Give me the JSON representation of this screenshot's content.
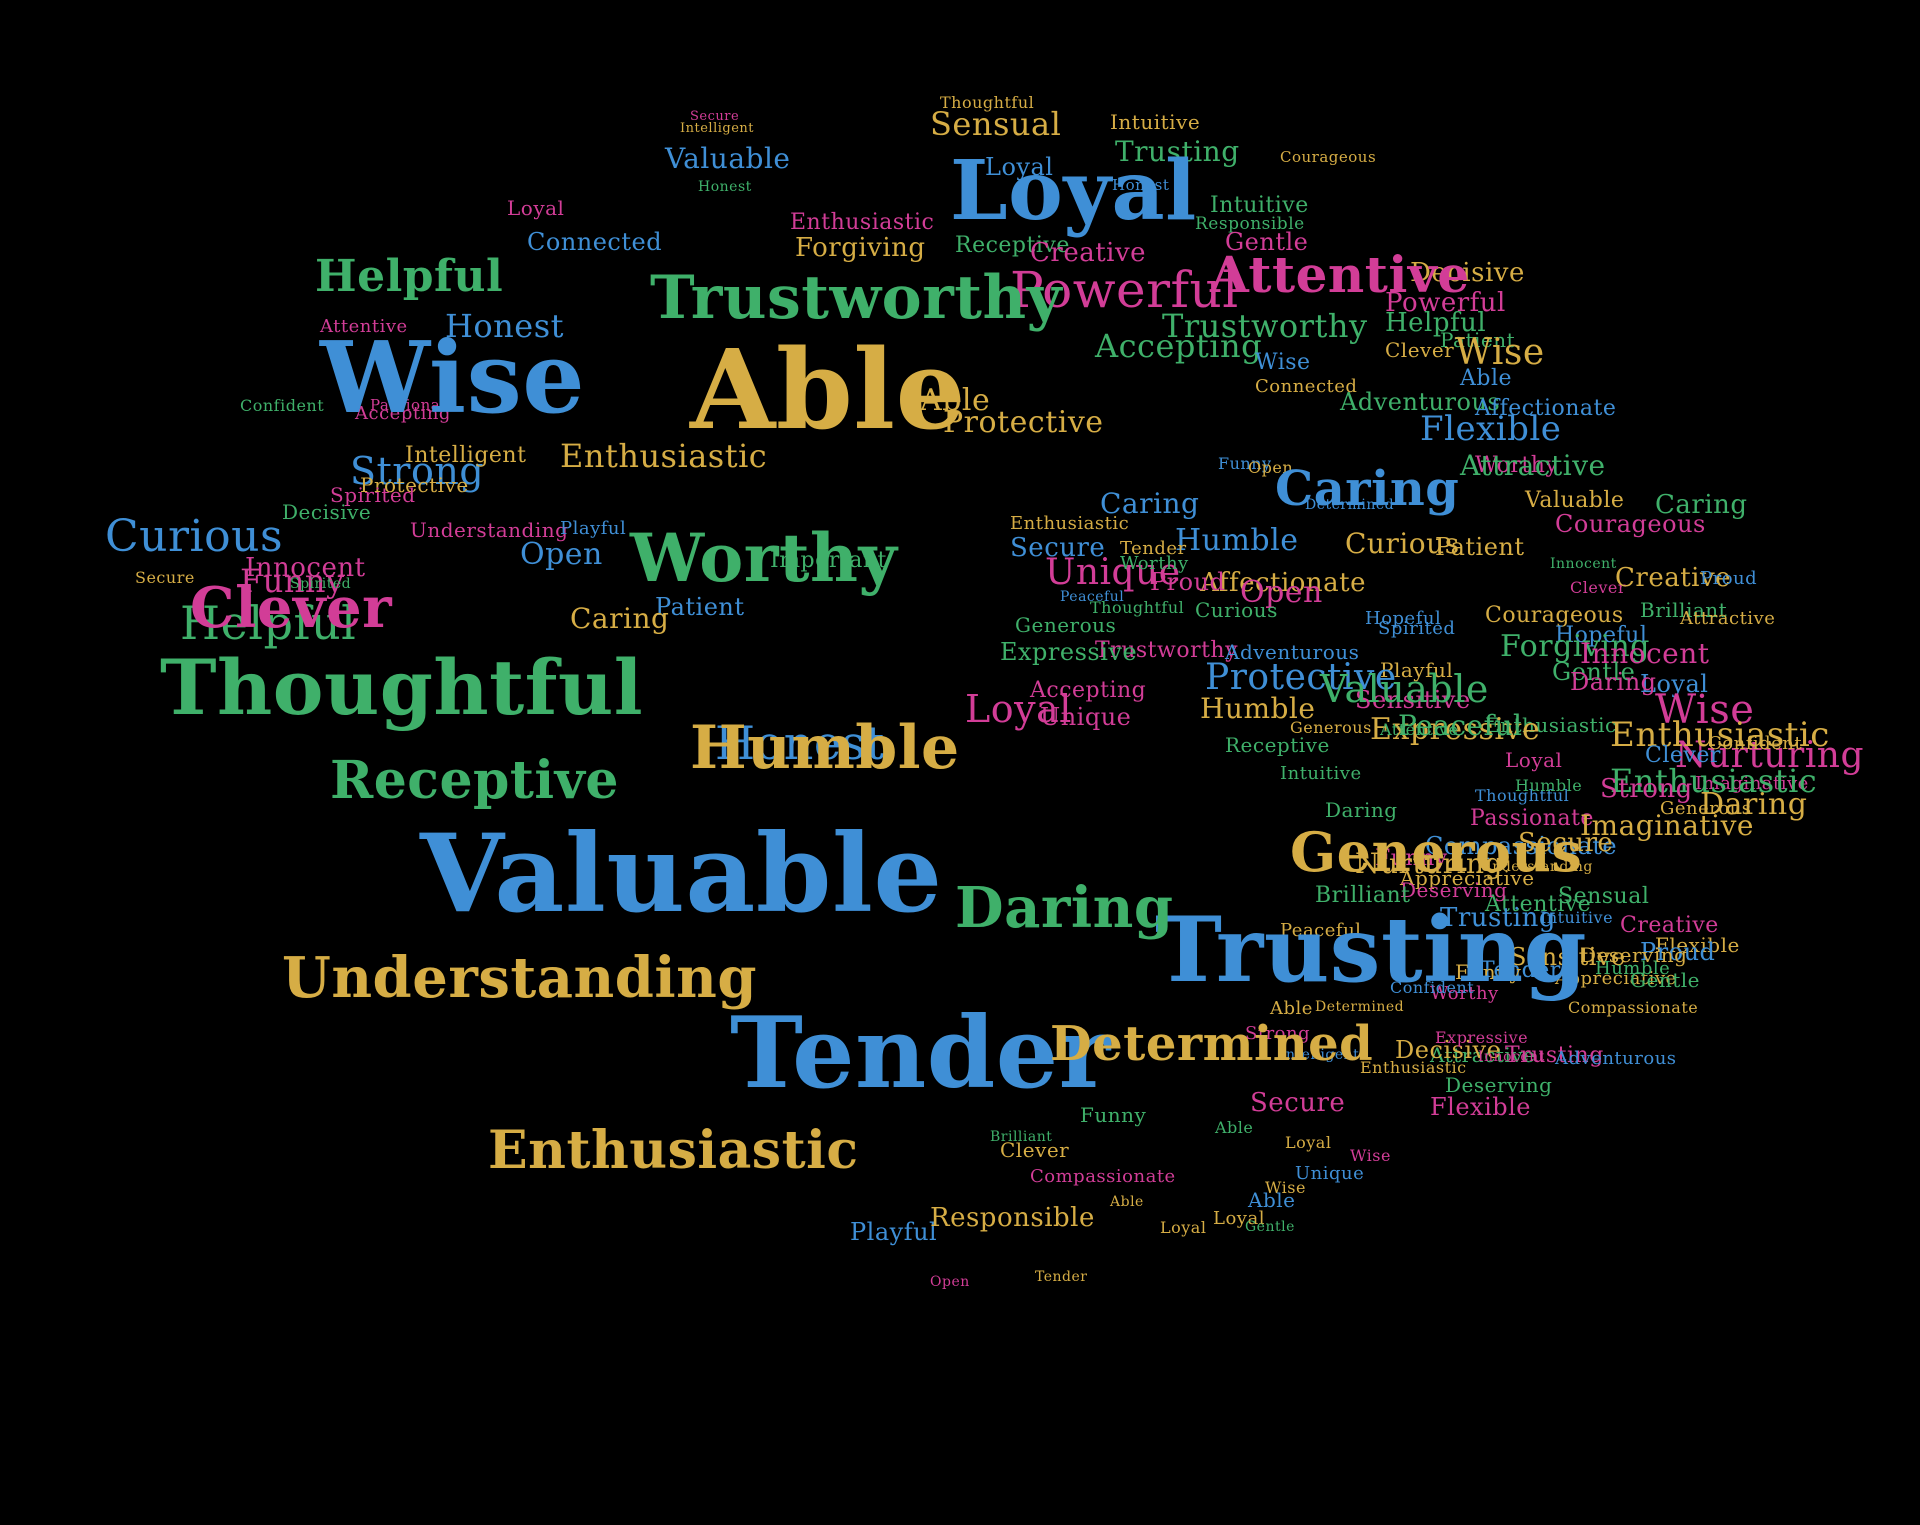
{
  "colors": {
    "background": "#000000",
    "blue": "#3f8fd6",
    "green": "#3fb06a",
    "gold": "#d6ad45",
    "magenta": "#d23d97"
  },
  "words": [
    {
      "text": "Secure",
      "color": "magenta"
    },
    {
      "text": "Intelligent",
      "color": "gold"
    },
    {
      "text": "Valuable",
      "color": "blue"
    },
    {
      "text": "Honest",
      "color": "green"
    },
    {
      "text": "Thoughtful",
      "color": "gold"
    },
    {
      "text": "Sensual",
      "color": "gold"
    },
    {
      "text": "Loyal",
      "color": "blue"
    },
    {
      "text": "Intuitive",
      "color": "gold"
    },
    {
      "text": "Trusting",
      "color": "green"
    },
    {
      "text": "Honest",
      "color": "blue"
    },
    {
      "text": "Courageous",
      "color": "gold"
    },
    {
      "text": "Intuitive",
      "color": "green"
    },
    {
      "text": "Responsible",
      "color": "green"
    },
    {
      "text": "Gentle",
      "color": "magenta"
    },
    {
      "text": "Loyal",
      "color": "magenta"
    },
    {
      "text": "Connected",
      "color": "blue"
    },
    {
      "text": "Enthusiastic",
      "color": "magenta"
    },
    {
      "text": "Forgiving",
      "color": "gold"
    },
    {
      "text": "Receptive",
      "color": "green"
    },
    {
      "text": "Creative",
      "color": "magenta"
    },
    {
      "text": "Powerful",
      "color": "magenta"
    },
    {
      "text": "Decisive",
      "color": "gold"
    },
    {
      "text": "Powerful",
      "color": "magenta"
    },
    {
      "text": "Helpful",
      "color": "green"
    },
    {
      "text": "Patient",
      "color": "green"
    },
    {
      "text": "Trustworthy",
      "color": "green"
    },
    {
      "text": "Honest",
      "color": "blue"
    },
    {
      "text": "Attentive",
      "color": "magenta"
    },
    {
      "text": "Wise",
      "color": "gold"
    },
    {
      "text": "Accepting",
      "color": "green"
    },
    {
      "text": "Clever",
      "color": "gold"
    },
    {
      "text": "Wise",
      "color": "blue"
    },
    {
      "text": "Connected",
      "color": "gold"
    },
    {
      "text": "Adventurous",
      "color": "green"
    },
    {
      "text": "Able",
      "color": "gold"
    },
    {
      "text": "Protective",
      "color": "gold"
    },
    {
      "text": "Able",
      "color": "blue"
    },
    {
      "text": "Affectionate",
      "color": "blue"
    },
    {
      "text": "Worthy",
      "color": "magenta"
    },
    {
      "text": "Flexible",
      "color": "blue"
    },
    {
      "text": "Passionate",
      "color": "magenta"
    },
    {
      "text": "Confident",
      "color": "green"
    },
    {
      "text": "Attractive",
      "color": "green"
    },
    {
      "text": "Enthusiastic",
      "color": "gold"
    },
    {
      "text": "Funny",
      "color": "blue"
    },
    {
      "text": "Open",
      "color": "gold"
    },
    {
      "text": "Accepting",
      "color": "magenta"
    },
    {
      "text": "Strong",
      "color": "blue"
    },
    {
      "text": "Intelligent",
      "color": "gold"
    },
    {
      "text": "Protective",
      "color": "gold"
    },
    {
      "text": "Spirited",
      "color": "magenta"
    },
    {
      "text": "Decisive",
      "color": "green"
    },
    {
      "text": "Understanding",
      "color": "magenta"
    },
    {
      "text": "Caring",
      "color": "blue"
    },
    {
      "text": "Determined",
      "color": "blue"
    },
    {
      "text": "Valuable",
      "color": "gold"
    },
    {
      "text": "Enthusiastic",
      "color": "gold"
    },
    {
      "text": "Patient",
      "color": "gold"
    },
    {
      "text": "Secure",
      "color": "blue"
    },
    {
      "text": "Open",
      "color": "blue"
    },
    {
      "text": "Humble",
      "color": "blue"
    },
    {
      "text": "Tender",
      "color": "gold"
    },
    {
      "text": "Unique",
      "color": "magenta"
    },
    {
      "text": "Affectionate",
      "color": "gold"
    },
    {
      "text": "Playful",
      "color": "blue"
    },
    {
      "text": "Curious",
      "color": "blue"
    },
    {
      "text": "Curious",
      "color": "gold"
    },
    {
      "text": "Caring",
      "color": "green"
    },
    {
      "text": "Open",
      "color": "magenta"
    },
    {
      "text": "Worthy",
      "color": "green"
    },
    {
      "text": "Proud",
      "color": "magenta"
    },
    {
      "text": "Courageous",
      "color": "magenta"
    },
    {
      "text": "Funny",
      "color": "magenta"
    },
    {
      "text": "Spirited",
      "color": "green"
    },
    {
      "text": "Innocent",
      "color": "green"
    },
    {
      "text": "Secure",
      "color": "gold"
    },
    {
      "text": "Innocent",
      "color": "magenta"
    },
    {
      "text": "Patient",
      "color": "blue"
    },
    {
      "text": "Helpful",
      "color": "green"
    },
    {
      "text": "Important",
      "color": "green"
    },
    {
      "text": "Clever",
      "color": "magenta"
    },
    {
      "text": "Creative",
      "color": "gold"
    },
    {
      "text": "Proud",
      "color": "blue"
    },
    {
      "text": "Spirited",
      "color": "blue"
    },
    {
      "text": "Trustworthy",
      "color": "magenta"
    },
    {
      "text": "Brilliant",
      "color": "green"
    },
    {
      "text": "Hopeful",
      "color": "blue"
    },
    {
      "text": "Caring",
      "color": "gold"
    },
    {
      "text": "Peaceful",
      "color": "blue"
    },
    {
      "text": "Thoughtful",
      "color": "green"
    },
    {
      "text": "Courageous",
      "color": "gold"
    },
    {
      "text": "Attractive",
      "color": "gold"
    },
    {
      "text": "Hopeful",
      "color": "blue"
    },
    {
      "text": "Forgiving",
      "color": "green"
    },
    {
      "text": "Innocent",
      "color": "magenta"
    },
    {
      "text": "Generous",
      "color": "green"
    },
    {
      "text": "Curious",
      "color": "green"
    },
    {
      "text": "Expressive",
      "color": "green"
    },
    {
      "text": "Adventurous",
      "color": "blue"
    },
    {
      "text": "Playful",
      "color": "gold"
    },
    {
      "text": "Protective",
      "color": "blue"
    },
    {
      "text": "Gentle",
      "color": "green"
    },
    {
      "text": "Accepting",
      "color": "magenta"
    },
    {
      "text": "Humble",
      "color": "gold"
    },
    {
      "text": "Loyal",
      "color": "blue"
    },
    {
      "text": "Wise",
      "color": "magenta"
    },
    {
      "text": "Daring",
      "color": "magenta"
    },
    {
      "text": "Generous",
      "color": "gold"
    },
    {
      "text": "Loyal",
      "color": "magenta"
    },
    {
      "text": "Unique",
      "color": "magenta"
    },
    {
      "text": "Receptive",
      "color": "green"
    },
    {
      "text": "Nurturing",
      "color": "magenta"
    },
    {
      "text": "Sensitive",
      "color": "magenta"
    },
    {
      "text": "Imaginative",
      "color": "magenta"
    },
    {
      "text": "Valuable",
      "color": "green"
    },
    {
      "text": "Loyal",
      "color": "magenta"
    },
    {
      "text": "Intuitive",
      "color": "green"
    },
    {
      "text": "Enthusiastic",
      "color": "green"
    },
    {
      "text": "Strong",
      "color": "magenta"
    },
    {
      "text": "Enthusiastic",
      "color": "green"
    },
    {
      "text": "Enthusiastic",
      "color": "gold"
    },
    {
      "text": "Clever",
      "color": "blue"
    },
    {
      "text": "Thoughtful",
      "color": "blue"
    },
    {
      "text": "Confident",
      "color": "gold"
    },
    {
      "text": "Daring",
      "color": "gold"
    },
    {
      "text": "Expressive",
      "color": "gold"
    },
    {
      "text": "Generous",
      "color": "gold"
    },
    {
      "text": "Peaceful",
      "color": "green"
    },
    {
      "text": "Attentive",
      "color": "green"
    },
    {
      "text": "Honest",
      "color": "blue"
    },
    {
      "text": "Daring",
      "color": "green"
    },
    {
      "text": "Passionate",
      "color": "magenta"
    },
    {
      "text": "Humble",
      "color": "green"
    },
    {
      "text": "Compassionate",
      "color": "blue"
    },
    {
      "text": "Funny",
      "color": "magenta"
    },
    {
      "text": "Nurturing",
      "color": "gold"
    },
    {
      "text": "Secure",
      "color": "gold"
    },
    {
      "text": "Imaginative",
      "color": "gold"
    },
    {
      "text": "Appreciative",
      "color": "gold"
    },
    {
      "text": "Attentive",
      "color": "green"
    },
    {
      "text": "Deserving",
      "color": "magenta"
    },
    {
      "text": "Understanding",
      "color": "gold"
    },
    {
      "text": "Sensual",
      "color": "green"
    },
    {
      "text": "Trusting",
      "color": "blue"
    },
    {
      "text": "Brilliant",
      "color": "green"
    },
    {
      "text": "Intuitive",
      "color": "blue"
    },
    {
      "text": "Creative",
      "color": "magenta"
    },
    {
      "text": "Peaceful",
      "color": "gold"
    },
    {
      "text": "Flexible",
      "color": "gold"
    },
    {
      "text": "Proud",
      "color": "blue"
    },
    {
      "text": "Deserving",
      "color": "gold"
    },
    {
      "text": "Sensitive",
      "color": "gold"
    },
    {
      "text": "Tender",
      "color": "blue"
    },
    {
      "text": "Appreciative",
      "color": "gold"
    },
    {
      "text": "Compassionate",
      "color": "gold"
    },
    {
      "text": "Gentle",
      "color": "green"
    },
    {
      "text": "Humble",
      "color": "green"
    },
    {
      "text": "Funny",
      "color": "gold"
    },
    {
      "text": "Worthy",
      "color": "magenta"
    },
    {
      "text": "Confident",
      "color": "blue"
    },
    {
      "text": "Determined",
      "color": "gold"
    },
    {
      "text": "Able",
      "color": "gold"
    },
    {
      "text": "Strong",
      "color": "magenta"
    },
    {
      "text": "Intelligent",
      "color": "blue"
    },
    {
      "text": "Enthusiastic",
      "color": "gold"
    },
    {
      "text": "Attractive",
      "color": "green"
    },
    {
      "text": "Decisive",
      "color": "gold"
    },
    {
      "text": "Expressive",
      "color": "magenta"
    },
    {
      "text": "Innocent",
      "color": "magenta"
    },
    {
      "text": "Trusting",
      "color": "magenta"
    },
    {
      "text": "Deserving",
      "color": "green"
    },
    {
      "text": "Flexible",
      "color": "magenta"
    },
    {
      "text": "Adventurous",
      "color": "blue"
    },
    {
      "text": "Secure",
      "color": "magenta"
    },
    {
      "text": "Able",
      "color": "green"
    },
    {
      "text": "Funny",
      "color": "green"
    },
    {
      "text": "Brilliant",
      "color": "green"
    },
    {
      "text": "Playful",
      "color": "blue"
    },
    {
      "text": "Responsible",
      "color": "gold"
    },
    {
      "text": "Compassionate",
      "color": "magenta"
    },
    {
      "text": "Clever",
      "color": "gold"
    },
    {
      "text": "Loyal",
      "color": "gold"
    },
    {
      "text": "Unique",
      "color": "blue"
    },
    {
      "text": "Wise",
      "color": "magenta"
    },
    {
      "text": "Wise",
      "color": "gold"
    },
    {
      "text": "Able",
      "color": "gold"
    },
    {
      "text": "Able",
      "color": "blue"
    },
    {
      "text": "Loyal",
      "color": "gold"
    },
    {
      "text": "Gentle",
      "color": "green"
    },
    {
      "text": "Loyal",
      "color": "gold"
    },
    {
      "text": "Open",
      "color": "magenta"
    },
    {
      "text": "Tender",
      "color": "gold"
    },
    {
      "text": "Curious",
      "color": "gold"
    },
    {
      "text": "Honest",
      "color": "green"
    },
    {
      "text": "Daring",
      "color": "gold"
    },
    {
      "text": "Peaceful",
      "color": "green"
    },
    {
      "text": "Receptive",
      "color": "blue"
    },
    {
      "text": "Appreciative",
      "color": "green"
    },
    {
      "text": "Spirited",
      "color": "green"
    },
    {
      "text": "Creative",
      "color": "green"
    },
    {
      "text": "Nurturing",
      "color": "green"
    },
    {
      "text": "Important",
      "color": "magenta"
    },
    {
      "text": "Playful",
      "color": "gold"
    },
    {
      "text": "Sensual",
      "color": "green"
    },
    {
      "text": "Strong",
      "color": "green"
    },
    {
      "text": "Determined",
      "color": "blue"
    },
    {
      "text": "Open",
      "color": "magenta"
    },
    {
      "text": "Tender",
      "color": "magenta"
    }
  ],
  "featured_words": [
    {
      "text": "Able",
      "color": "gold"
    },
    {
      "text": "Wise",
      "color": "blue"
    },
    {
      "text": "Valuable",
      "color": "blue"
    },
    {
      "text": "Tender",
      "color": "blue"
    },
    {
      "text": "Trusting",
      "color": "blue"
    },
    {
      "text": "Thoughtful",
      "color": "green"
    },
    {
      "text": "Trustworthy",
      "color": "green"
    },
    {
      "text": "Loyal",
      "color": "blue"
    },
    {
      "text": "Worthy",
      "color": "green"
    },
    {
      "text": "Understanding",
      "color": "gold"
    },
    {
      "text": "Humble",
      "color": "gold"
    },
    {
      "text": "Generous",
      "color": "gold"
    },
    {
      "text": "Enthusiastic",
      "color": "gold"
    },
    {
      "text": "Determined",
      "color": "gold"
    },
    {
      "text": "Daring",
      "color": "green"
    },
    {
      "text": "Attentive",
      "color": "magenta"
    },
    {
      "text": "Receptive",
      "color": "green"
    },
    {
      "text": "Clever",
      "color": "magenta"
    },
    {
      "text": "Helpful",
      "color": "green"
    },
    {
      "text": "Caring",
      "color": "blue"
    }
  ]
}
